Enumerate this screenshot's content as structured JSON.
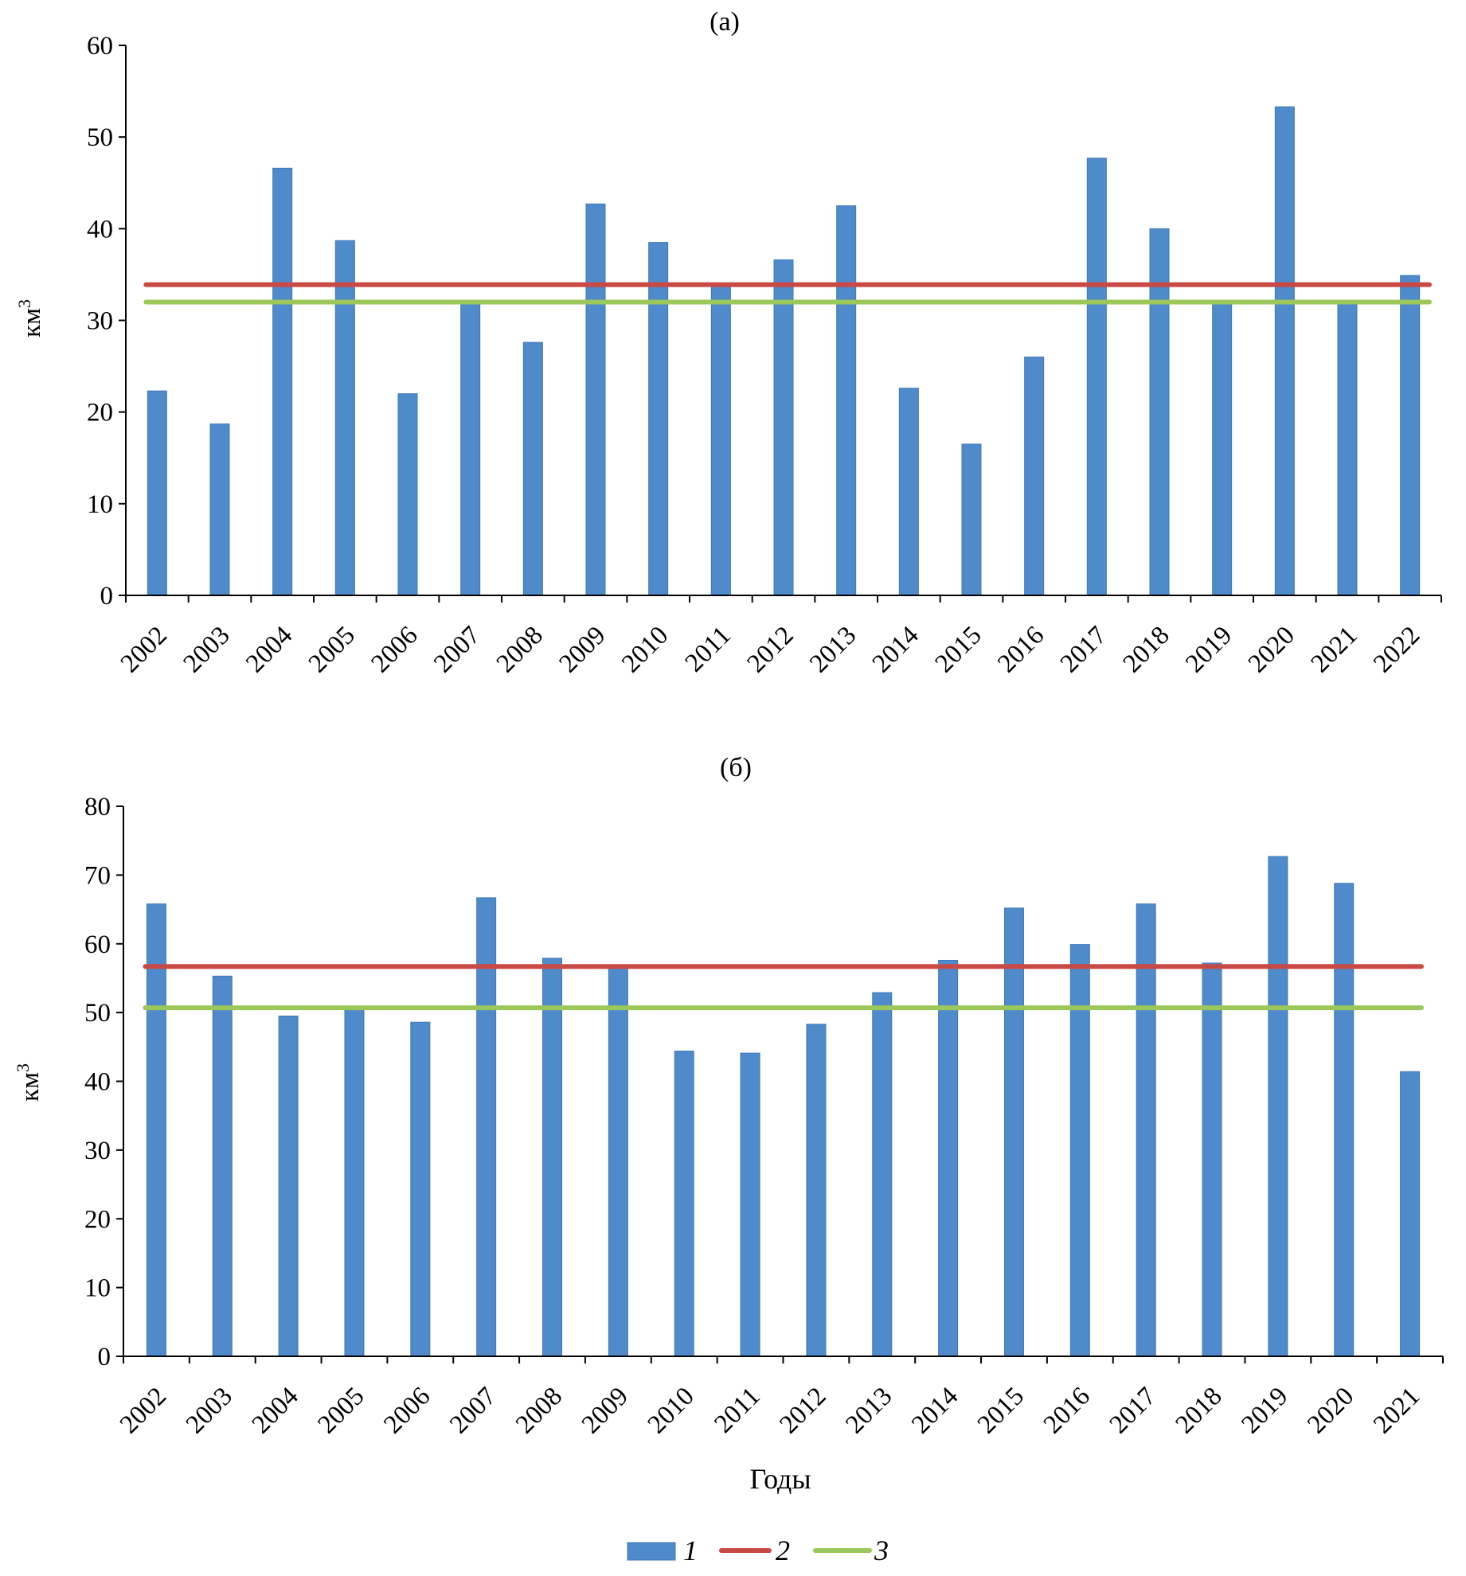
{
  "colors": {
    "bar": "#4f8acb",
    "bar_edge": "#3f78b8",
    "series2": "#c94a44",
    "series3": "#9cc75a",
    "axis": "#000000"
  },
  "legend": {
    "items": [
      {
        "label": "1",
        "kind": "bar"
      },
      {
        "label": "2",
        "kind": "line",
        "color_key": "series2"
      },
      {
        "label": "3",
        "kind": "line",
        "color_key": "series3"
      }
    ]
  },
  "chart_data": [
    {
      "type": "bar",
      "title": "(а)",
      "xlabel": "",
      "ylabel": "км3",
      "ylim": [
        0,
        60
      ],
      "yticks": [
        0,
        10,
        20,
        30,
        40,
        50,
        60
      ],
      "categories": [
        "2002",
        "2003",
        "2004",
        "2005",
        "2006",
        "2007",
        "2008",
        "2009",
        "2010",
        "2011",
        "2012",
        "2013",
        "2014",
        "2015",
        "2016",
        "2017",
        "2018",
        "2019",
        "2020",
        "2021",
        "2022"
      ],
      "series": [
        {
          "name": "1",
          "kind": "bar",
          "values": [
            22.3,
            18.7,
            46.6,
            38.7,
            22.0,
            32.0,
            27.6,
            42.7,
            38.5,
            33.7,
            36.6,
            42.5,
            22.6,
            16.5,
            26.0,
            47.7,
            40.0,
            32.0,
            53.3,
            32.0,
            34.9
          ]
        },
        {
          "name": "2",
          "kind": "hline",
          "value": 33.9
        },
        {
          "name": "3",
          "kind": "hline",
          "value": 32.0
        }
      ]
    },
    {
      "type": "bar",
      "title": "(б)",
      "xlabel": "Годы",
      "ylabel": "км3",
      "ylim": [
        0,
        80
      ],
      "yticks": [
        0,
        10,
        20,
        30,
        40,
        50,
        60,
        70,
        80
      ],
      "categories": [
        "2002",
        "2003",
        "2004",
        "2005",
        "2006",
        "2007",
        "2008",
        "2009",
        "2010",
        "2011",
        "2012",
        "2013",
        "2014",
        "2015",
        "2016",
        "2017",
        "2018",
        "2019",
        "2020",
        "2021"
      ],
      "series": [
        {
          "name": "1",
          "kind": "bar",
          "values": [
            65.8,
            55.3,
            49.5,
            50.6,
            48.6,
            66.7,
            57.9,
            56.8,
            44.4,
            44.1,
            48.3,
            52.9,
            57.6,
            65.2,
            59.9,
            65.8,
            57.2,
            72.7,
            68.8,
            41.4
          ]
        },
        {
          "name": "2",
          "kind": "hline",
          "value": 56.7
        },
        {
          "name": "3",
          "kind": "hline",
          "value": 50.7
        }
      ]
    }
  ]
}
